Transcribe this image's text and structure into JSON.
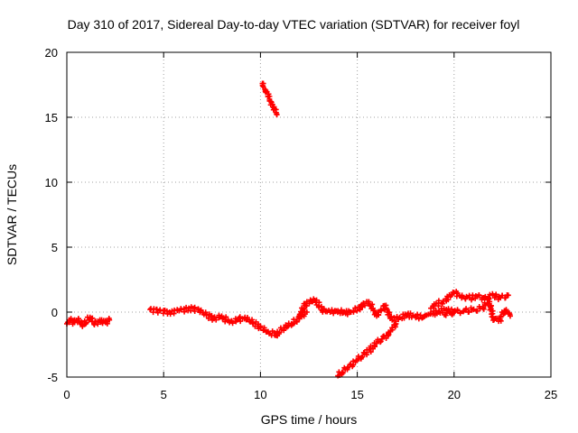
{
  "chart_data": {
    "type": "scatter",
    "title": "Day 310 of 2017, Sidereal Day-to-day VTEC variation (SDTVAR) for receiver foyl",
    "xlabel": "GPS time / hours",
    "ylabel": "SDTVAR / TECUs",
    "xlim": [
      0,
      25
    ],
    "ylim": [
      -5,
      20
    ],
    "xticks": [
      "0",
      "5",
      "10",
      "15",
      "20",
      "25"
    ],
    "yticks": [
      "-5",
      "0",
      "5",
      "10",
      "15",
      "20"
    ],
    "grid": true,
    "marker": "+",
    "series_color": "#ff0000",
    "series": [
      {
        "name": "segment-a",
        "x": [
          0.0,
          0.2,
          0.4,
          0.6,
          0.8,
          1.0,
          1.2,
          1.4,
          1.6,
          1.8,
          2.0,
          2.2
        ],
        "y": [
          -0.9,
          -0.6,
          -0.8,
          -0.5,
          -1.0,
          -0.8,
          -0.4,
          -0.9,
          -0.7,
          -0.6,
          -0.8,
          -0.6
        ]
      },
      {
        "name": "segment-b",
        "x": [
          4.3,
          4.8,
          5.3,
          5.8,
          6.3,
          6.8,
          7.2,
          7.6,
          8.0,
          8.4,
          8.8,
          9.2,
          9.6,
          10.0,
          10.4,
          10.8,
          11.2,
          11.6,
          12.0,
          12.4
        ],
        "y": [
          0.2,
          0.1,
          0.0,
          0.1,
          0.3,
          0.2,
          -0.2,
          -0.5,
          -0.3,
          -0.8,
          -0.6,
          -0.4,
          -0.8,
          -1.2,
          -1.5,
          -1.8,
          -1.2,
          -0.9,
          -0.5,
          0.0
        ]
      },
      {
        "name": "segment-c",
        "x": [
          12.0,
          12.4,
          12.8,
          13.2,
          13.6,
          14.0,
          14.4,
          14.8,
          15.2,
          15.6,
          16.0,
          16.4,
          16.8,
          17.2,
          17.6,
          18.0,
          18.4,
          18.8,
          19.2,
          19.6,
          20.0
        ],
        "y": [
          -0.3,
          0.8,
          0.9,
          0.2,
          0.0,
          0.1,
          -0.1,
          0.1,
          0.4,
          0.8,
          -0.3,
          0.5,
          -0.6,
          -0.4,
          -0.2,
          -0.3,
          -0.4,
          -0.1,
          0.0,
          0.2,
          0.0
        ]
      },
      {
        "name": "segment-d",
        "x": [
          18.8,
          19.2,
          19.6,
          20.0,
          20.4,
          20.8,
          21.2,
          21.6,
          22.0,
          22.4,
          22.8
        ],
        "y": [
          0.3,
          0.7,
          0.9,
          1.5,
          1.2,
          1.1,
          1.2,
          1.1,
          1.3,
          1.1,
          1.3
        ]
      },
      {
        "name": "segment-e",
        "x": [
          19.5,
          20.0,
          20.5,
          21.0,
          21.5,
          21.8,
          22.0,
          22.3,
          22.6,
          22.9
        ],
        "y": [
          -0.2,
          0.0,
          0.1,
          0.2,
          0.3,
          1.0,
          -0.4,
          -0.7,
          0.1,
          -0.3
        ]
      },
      {
        "name": "segment-f",
        "x": [
          14.0,
          14.5,
          15.0,
          15.5,
          16.0,
          16.5,
          16.8,
          17.0
        ],
        "y": [
          -4.9,
          -4.3,
          -3.7,
          -3.1,
          -2.4,
          -1.8,
          -1.2,
          -0.9
        ]
      },
      {
        "name": "segment-g",
        "x": [
          10.1,
          10.25,
          10.4,
          10.55,
          10.7,
          10.85
        ],
        "y": [
          17.6,
          17.0,
          16.6,
          16.2,
          15.8,
          15.2
        ]
      }
    ]
  }
}
